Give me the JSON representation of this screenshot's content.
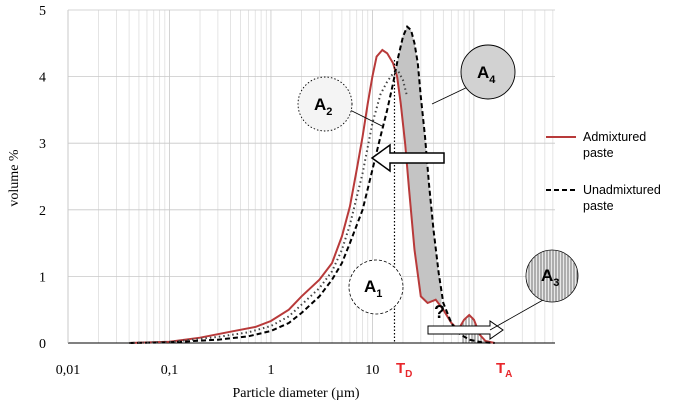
{
  "chart_data": {
    "type": "line",
    "xscale": "log",
    "xlim": [
      0.01,
      630
    ],
    "ylim": [
      0,
      5
    ],
    "xlabel": "Particle diameter (µm)",
    "ylabel": "volume %",
    "x_ticks": [
      {
        "value": 0.01,
        "label": "0,01"
      },
      {
        "value": 0.1,
        "label": "0,1"
      },
      {
        "value": 1,
        "label": "1"
      },
      {
        "value": 10,
        "label": "10"
      }
    ],
    "y_ticks": [
      0,
      1,
      2,
      3,
      4,
      5
    ],
    "grid": true,
    "legend_position": "right",
    "series": [
      {
        "name": "Admixtured paste",
        "color": "#b83a3a",
        "style": "solid",
        "points": [
          [
            0.04,
            0
          ],
          [
            0.1,
            0.02
          ],
          [
            0.2,
            0.08
          ],
          [
            0.4,
            0.17
          ],
          [
            0.7,
            0.24
          ],
          [
            1.0,
            0.33
          ],
          [
            1.5,
            0.5
          ],
          [
            2.0,
            0.7
          ],
          [
            3.0,
            0.95
          ],
          [
            4.0,
            1.2
          ],
          [
            5.0,
            1.6
          ],
          [
            6.0,
            2.05
          ],
          [
            7.0,
            2.6
          ],
          [
            8.0,
            3.1
          ],
          [
            9.0,
            3.6
          ],
          [
            10.0,
            4.0
          ],
          [
            11.0,
            4.3
          ],
          [
            12.5,
            4.4
          ],
          [
            14.0,
            4.35
          ],
          [
            16.0,
            4.2
          ],
          [
            17.5,
            4.0
          ],
          [
            19.0,
            3.6
          ],
          [
            21.0,
            3.0
          ],
          [
            23.0,
            2.3
          ],
          [
            26.0,
            1.4
          ],
          [
            30.0,
            0.7
          ],
          [
            35.0,
            0.6
          ],
          [
            42.0,
            0.65
          ],
          [
            50.0,
            0.5
          ],
          [
            60.0,
            0.3
          ],
          [
            70.0,
            0.2
          ],
          [
            80.0,
            0.35
          ],
          [
            90.0,
            0.42
          ],
          [
            100.0,
            0.35
          ],
          [
            115.0,
            0.12
          ],
          [
            130.0,
            0.03
          ],
          [
            160.0,
            0
          ]
        ]
      },
      {
        "name": "Unadmixtured paste",
        "color": "#000000",
        "style": "dashed",
        "points": [
          [
            0.04,
            0
          ],
          [
            0.1,
            0.01
          ],
          [
            0.3,
            0.05
          ],
          [
            0.6,
            0.1
          ],
          [
            1.0,
            0.18
          ],
          [
            1.5,
            0.3
          ],
          [
            2.0,
            0.45
          ],
          [
            3.0,
            0.7
          ],
          [
            4.0,
            0.95
          ],
          [
            5.0,
            1.2
          ],
          [
            6.0,
            1.5
          ],
          [
            8.0,
            2.0
          ],
          [
            10.0,
            2.6
          ],
          [
            12.0,
            3.1
          ],
          [
            14.0,
            3.5
          ],
          [
            16.0,
            3.9
          ],
          [
            18.0,
            4.3
          ],
          [
            20.0,
            4.6
          ],
          [
            22.0,
            4.75
          ],
          [
            24.0,
            4.7
          ],
          [
            26.0,
            4.5
          ],
          [
            28.0,
            4.2
          ],
          [
            30.0,
            3.7
          ],
          [
            33.0,
            3.1
          ],
          [
            36.0,
            2.4
          ],
          [
            40.0,
            1.7
          ],
          [
            45.0,
            1.05
          ],
          [
            50.0,
            0.6
          ],
          [
            60.0,
            0.3
          ],
          [
            70.0,
            0.15
          ],
          [
            90.0,
            0.05
          ],
          [
            120.0,
            0.01
          ],
          [
            160.0,
            0
          ]
        ]
      }
    ],
    "vertical_line": {
      "x": 16.5,
      "label_main": "T",
      "label_sub": "D"
    },
    "marker_label": {
      "x": 120,
      "label_main": "T",
      "label_sub": "A"
    },
    "annotations": [
      {
        "main": "A",
        "sub": "1",
        "style": "dashed-circle"
      },
      {
        "main": "A",
        "sub": "2",
        "style": "dotted-circle"
      },
      {
        "main": "A",
        "sub": "3",
        "style": "hatched-circle"
      },
      {
        "main": "A",
        "sub": "4",
        "style": "grey-circle"
      },
      {
        "main": "?",
        "sub": "",
        "style": "plain"
      }
    ]
  }
}
